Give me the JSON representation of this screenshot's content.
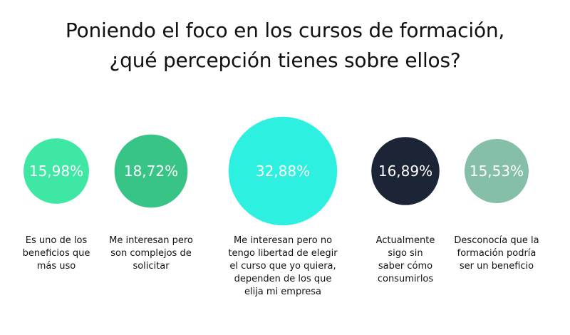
{
  "title": {
    "line1": "Poniendo el foco en los cursos de formación,",
    "line2": "¿qué percepción tienes sobre ellos?"
  },
  "chart_data": {
    "type": "bubble",
    "title": "Poniendo el foco en los cursos de formación, ¿qué percepción tienes sobre ellos?",
    "categories": [
      "Es uno de los beneficios que más uso",
      "Me interesan pero son complejos de solicitar",
      "Me interesan pero no tengo libertad de elegir el curso que yo quiera, dependen de los que elija mi empresa",
      "Actualmente sigo sin saber cómo consumirlos",
      "Desconocía que la formación podría ser un beneficio"
    ],
    "values": [
      15.98,
      18.72,
      32.88,
      16.89,
      15.53
    ],
    "value_labels": [
      "15,98%",
      "18,72%",
      "32,88%",
      "16,89%",
      "15,53%"
    ],
    "colors": [
      "#3ee8a4",
      "#37c486",
      "#2ef0e0",
      "#1b2535",
      "#86bfa8"
    ],
    "label_lines": [
      [
        "Es uno de los",
        "beneficios que",
        "más uso"
      ],
      [
        "Me interesan pero",
        "son complejos de",
        "solicitar"
      ],
      [
        "Me interesan pero no",
        "tengo libertad de elegir",
        "el curso que yo quiera,",
        "dependen de los que",
        "elija mi empresa"
      ],
      [
        "Actualmente",
        "sigo sin",
        "saber cómo",
        "consumirlos"
      ],
      [
        "Desconocía que la",
        "formación podría",
        "ser un beneficio"
      ]
    ]
  }
}
